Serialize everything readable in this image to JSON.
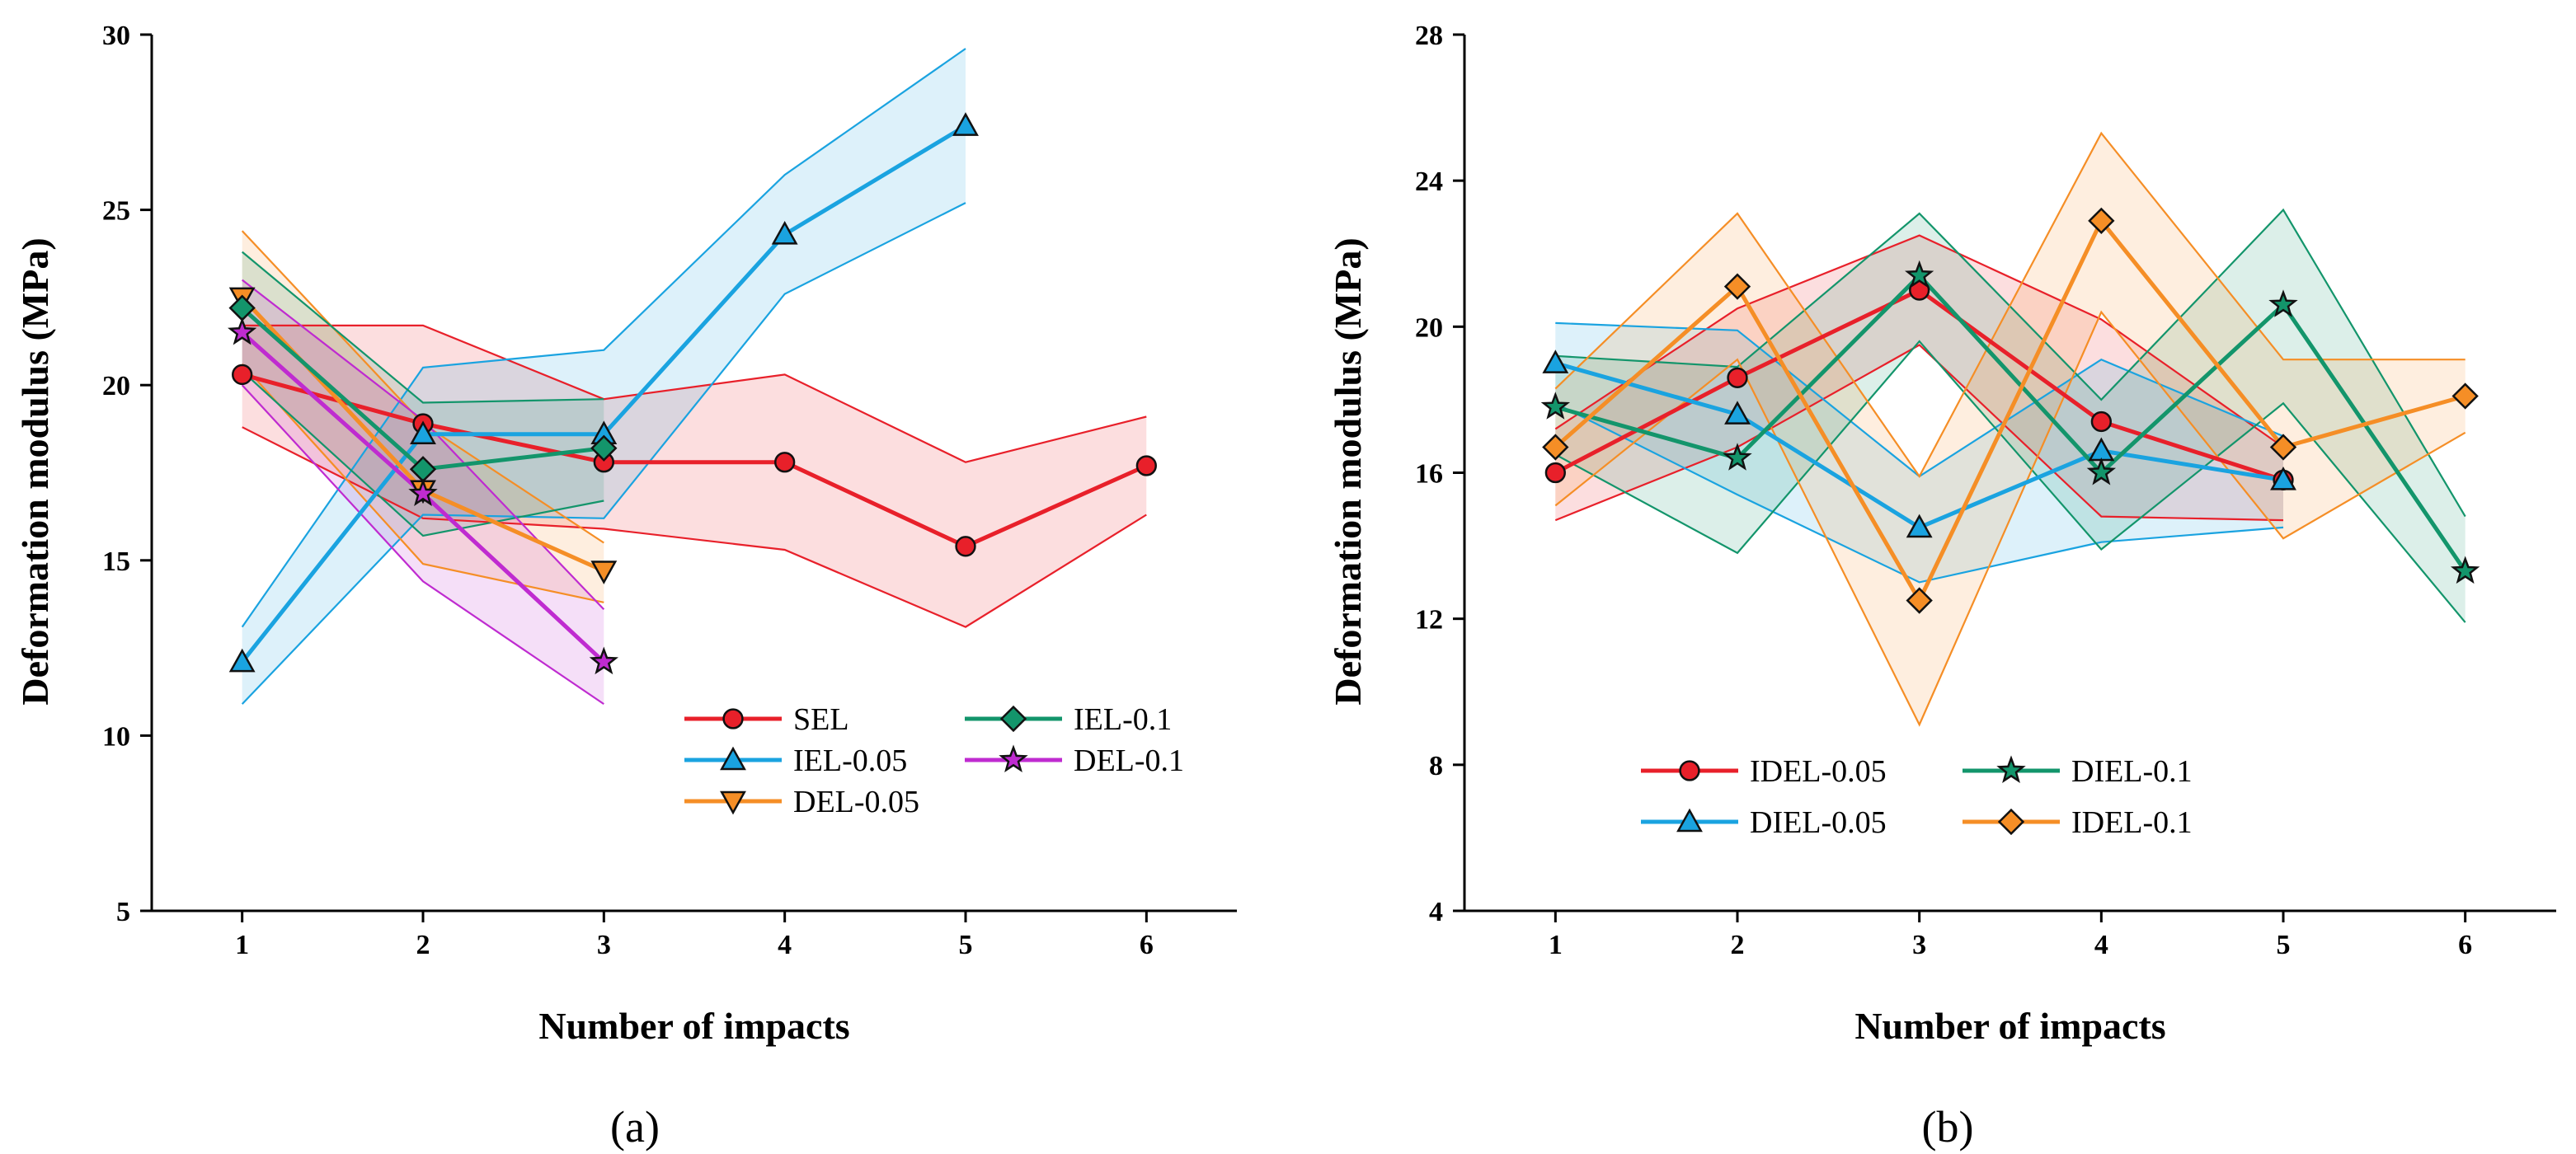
{
  "chart_data": [
    {
      "type": "line",
      "panel_label": "(a)",
      "xlabel": "Number of  impacts",
      "ylabel": "Deformation modulus (MPa)",
      "ylim": [
        5,
        30
      ],
      "yticks": [
        5,
        10,
        15,
        20,
        25,
        30
      ],
      "xlim": [
        0.5,
        6.5
      ],
      "xticks": [
        1,
        2,
        3,
        4,
        5,
        6
      ],
      "legend_position": "bottom-right",
      "legend_layout": [
        [
          "SEL",
          "IEL-0.1"
        ],
        [
          "IEL-0.05",
          "DEL-0.1"
        ],
        [
          "DEL-0.05"
        ]
      ],
      "series": [
        {
          "name": "SEL",
          "color": "#e8202a",
          "marker": "circle",
          "x": [
            1,
            2,
            3,
            4,
            5,
            6
          ],
          "values": [
            20.3,
            18.9,
            17.8,
            17.8,
            15.4,
            17.7
          ],
          "upper": [
            21.7,
            21.7,
            19.6,
            20.3,
            17.8,
            19.1
          ],
          "lower": [
            18.8,
            16.2,
            15.9,
            15.3,
            13.1,
            16.3
          ]
        },
        {
          "name": "IEL-0.05",
          "color": "#1aa3e0",
          "marker": "triangle-up",
          "x": [
            1,
            2,
            3,
            4,
            5
          ],
          "values": [
            12.1,
            18.6,
            18.6,
            24.3,
            27.4
          ],
          "upper": [
            13.1,
            20.5,
            21.0,
            26.0,
            29.6
          ],
          "lower": [
            10.9,
            16.3,
            16.2,
            22.6,
            25.2
          ]
        },
        {
          "name": "DEL-0.05",
          "color": "#f58e26",
          "marker": "triangle-down",
          "x": [
            1,
            2,
            3
          ],
          "values": [
            22.5,
            17.0,
            14.7
          ],
          "upper": [
            24.4,
            18.9,
            15.5
          ],
          "lower": [
            20.6,
            14.9,
            13.8
          ]
        },
        {
          "name": "IEL-0.1",
          "color": "#13956b",
          "marker": "diamond",
          "x": [
            1,
            2,
            3
          ],
          "values": [
            22.2,
            17.6,
            18.2
          ],
          "upper": [
            23.8,
            19.5,
            19.6
          ],
          "lower": [
            20.4,
            15.7,
            16.7
          ]
        },
        {
          "name": "DEL-0.1",
          "color": "#bf2bd0",
          "marker": "star",
          "x": [
            1,
            2,
            3
          ],
          "values": [
            21.5,
            16.9,
            12.1
          ],
          "upper": [
            23.0,
            19.0,
            13.6
          ],
          "lower": [
            20.0,
            14.4,
            10.9
          ]
        }
      ]
    },
    {
      "type": "line",
      "panel_label": "(b)",
      "xlabel": "Number of  impacts",
      "ylabel": "Deformation modulus (MPa)",
      "ylim": [
        4,
        28
      ],
      "yticks": [
        4,
        8,
        12,
        16,
        20,
        24,
        28
      ],
      "xlim": [
        0.5,
        6.5
      ],
      "xticks": [
        1,
        2,
        3,
        4,
        5,
        6
      ],
      "legend_position": "bottom-left",
      "legend_layout": [
        [
          "IDEL-0.05",
          "DIEL-0.1"
        ],
        [
          "DIEL-0.05",
          "IDEL-0.1"
        ]
      ],
      "series": [
        {
          "name": "IDEL-0.05",
          "color": "#e8202a",
          "marker": "circle",
          "x": [
            1,
            2,
            3,
            4,
            5
          ],
          "values": [
            16.0,
            18.6,
            21.0,
            17.4,
            15.8
          ],
          "upper": [
            17.2,
            20.5,
            22.5,
            20.2,
            16.7
          ],
          "lower": [
            14.7,
            16.7,
            19.5,
            14.8,
            14.7
          ]
        },
        {
          "name": "DIEL-0.05",
          "color": "#1aa3e0",
          "marker": "triangle-up",
          "x": [
            1,
            2,
            3,
            4,
            5
          ],
          "values": [
            19.0,
            17.6,
            14.5,
            16.6,
            15.8
          ],
          "upper": [
            20.1,
            19.9,
            15.9,
            19.1,
            17.0
          ],
          "lower": [
            17.9,
            15.4,
            13.0,
            14.1,
            14.5
          ]
        },
        {
          "name": "DIEL-0.1",
          "color": "#13956b",
          "marker": "star",
          "x": [
            1,
            2,
            3,
            4,
            5,
            6
          ],
          "values": [
            17.8,
            16.4,
            21.4,
            16.0,
            20.6,
            13.3
          ],
          "upper": [
            19.2,
            18.9,
            23.1,
            18.0,
            23.2,
            14.8
          ],
          "lower": [
            16.5,
            13.8,
            19.6,
            13.9,
            17.9,
            11.9
          ]
        },
        {
          "name": "IDEL-0.1",
          "color": "#f58e26",
          "marker": "diamond",
          "x": [
            1,
            2,
            3,
            4,
            5,
            6
          ],
          "values": [
            16.7,
            21.1,
            12.5,
            22.9,
            16.7,
            18.1
          ],
          "upper": [
            18.3,
            23.1,
            15.9,
            25.3,
            19.1,
            19.1
          ],
          "lower": [
            15.1,
            19.1,
            9.1,
            20.4,
            14.2,
            17.1
          ]
        }
      ]
    }
  ]
}
